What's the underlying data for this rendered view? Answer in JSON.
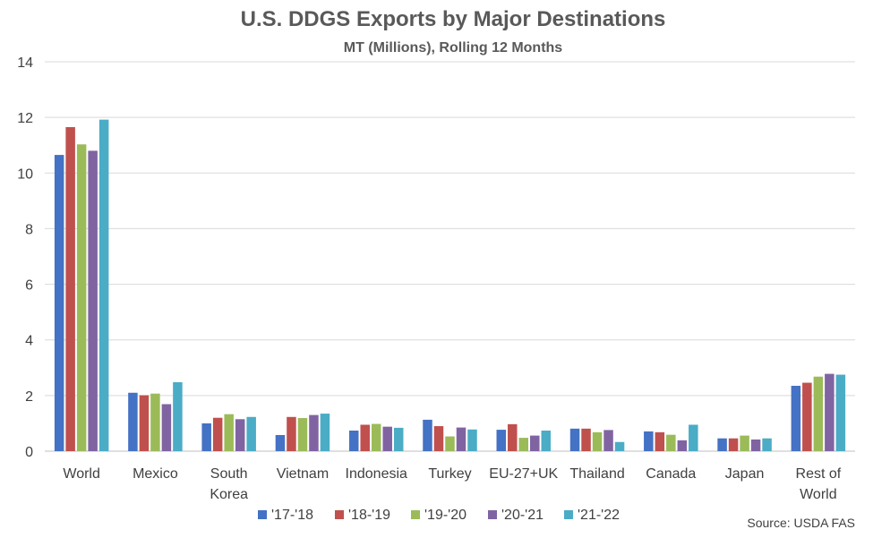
{
  "chart_data": {
    "type": "bar",
    "title": "U.S. DDGS Exports by Major Destinations",
    "subtitle": "MT (Millions), Rolling 12 Months",
    "xlabel": "",
    "ylabel": "",
    "ylim": [
      0,
      14
    ],
    "yticks": [
      0,
      2,
      4,
      6,
      8,
      10,
      12,
      14
    ],
    "grid": true,
    "legend_position": "bottom",
    "categories": [
      [
        "World"
      ],
      [
        "Mexico"
      ],
      [
        "South",
        "Korea"
      ],
      [
        "Vietnam"
      ],
      [
        "Indonesia"
      ],
      [
        "Turkey"
      ],
      [
        "EU-27+UK"
      ],
      [
        "Thailand"
      ],
      [
        "Canada"
      ],
      [
        "Japan"
      ],
      [
        "Rest of",
        "World"
      ]
    ],
    "series": [
      {
        "name": "'17-'18",
        "color": "#4472C4",
        "values": [
          10.65,
          2.1,
          1.0,
          0.58,
          0.74,
          1.13,
          0.77,
          0.81,
          0.71,
          0.46,
          2.35
        ]
      },
      {
        "name": "'18-'19",
        "color": "#C0504D",
        "values": [
          11.65,
          2.01,
          1.2,
          1.23,
          0.95,
          0.9,
          0.97,
          0.81,
          0.68,
          0.46,
          2.46
        ]
      },
      {
        "name": "'19-'20",
        "color": "#9BBB59",
        "values": [
          11.03,
          2.07,
          1.33,
          1.19,
          0.98,
          0.53,
          0.48,
          0.68,
          0.59,
          0.56,
          2.68
        ]
      },
      {
        "name": "'20-'21",
        "color": "#8064A2",
        "values": [
          10.8,
          1.69,
          1.15,
          1.3,
          0.88,
          0.85,
          0.56,
          0.76,
          0.39,
          0.42,
          2.78
        ]
      },
      {
        "name": "'21-'22",
        "color": "#4BACC6",
        "values": [
          11.92,
          2.48,
          1.23,
          1.35,
          0.84,
          0.78,
          0.74,
          0.33,
          0.95,
          0.46,
          2.75
        ]
      }
    ],
    "source": "Source: USDA FAS"
  },
  "colors": {
    "grid": "#D9D9D9",
    "axis": "#BFBFBF",
    "text": "#404040",
    "title": "#595959"
  }
}
